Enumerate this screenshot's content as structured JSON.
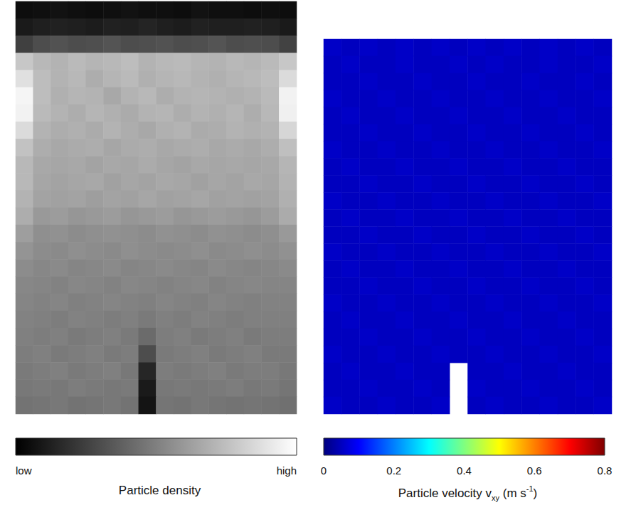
{
  "chart_data": [
    {
      "type": "heatmap",
      "tick_labels": false,
      "cells": [
        [
          0.05,
          0.06,
          0.07,
          0.06,
          0.05,
          0.06,
          0.07,
          0.06,
          0.06,
          0.05,
          0.07,
          0.06,
          0.06,
          0.05,
          0.06,
          0.05
        ],
        [
          0.1,
          0.12,
          0.13,
          0.12,
          0.11,
          0.13,
          0.12,
          0.14,
          0.12,
          0.11,
          0.13,
          0.12,
          0.12,
          0.13,
          0.12,
          0.1
        ],
        [
          0.25,
          0.3,
          0.32,
          0.3,
          0.31,
          0.33,
          0.3,
          0.31,
          0.32,
          0.3,
          0.31,
          0.33,
          0.3,
          0.31,
          0.3,
          0.26
        ],
        [
          0.78,
          0.72,
          0.7,
          0.73,
          0.71,
          0.72,
          0.74,
          0.7,
          0.72,
          0.73,
          0.71,
          0.7,
          0.72,
          0.71,
          0.73,
          0.78
        ],
        [
          0.88,
          0.74,
          0.7,
          0.72,
          0.68,
          0.71,
          0.73,
          0.69,
          0.71,
          0.72,
          0.7,
          0.69,
          0.71,
          0.72,
          0.74,
          0.86
        ],
        [
          0.96,
          0.74,
          0.69,
          0.71,
          0.7,
          0.66,
          0.7,
          0.72,
          0.68,
          0.7,
          0.71,
          0.7,
          0.69,
          0.7,
          0.73,
          0.95
        ],
        [
          0.95,
          0.73,
          0.7,
          0.68,
          0.71,
          0.69,
          0.67,
          0.7,
          0.71,
          0.68,
          0.7,
          0.69,
          0.71,
          0.68,
          0.72,
          0.94
        ],
        [
          0.86,
          0.7,
          0.68,
          0.69,
          0.67,
          0.7,
          0.68,
          0.66,
          0.69,
          0.7,
          0.67,
          0.68,
          0.7,
          0.69,
          0.7,
          0.84
        ],
        [
          0.76,
          0.68,
          0.66,
          0.67,
          0.68,
          0.65,
          0.67,
          0.68,
          0.66,
          0.67,
          0.68,
          0.66,
          0.67,
          0.66,
          0.68,
          0.75
        ],
        [
          0.72,
          0.66,
          0.65,
          0.66,
          0.64,
          0.66,
          0.65,
          0.67,
          0.65,
          0.64,
          0.66,
          0.65,
          0.66,
          0.65,
          0.66,
          0.71
        ],
        [
          0.72,
          0.65,
          0.64,
          0.65,
          0.66,
          0.63,
          0.65,
          0.64,
          0.66,
          0.65,
          0.63,
          0.65,
          0.64,
          0.66,
          0.65,
          0.7
        ],
        [
          0.7,
          0.64,
          0.63,
          0.64,
          0.62,
          0.64,
          0.63,
          0.65,
          0.63,
          0.64,
          0.65,
          0.63,
          0.64,
          0.63,
          0.64,
          0.69
        ],
        [
          0.68,
          0.6,
          0.61,
          0.59,
          0.6,
          0.61,
          0.59,
          0.6,
          0.61,
          0.59,
          0.6,
          0.61,
          0.6,
          0.59,
          0.61,
          0.67
        ],
        [
          0.62,
          0.56,
          0.57,
          0.55,
          0.56,
          0.57,
          0.56,
          0.55,
          0.57,
          0.56,
          0.55,
          0.57,
          0.56,
          0.55,
          0.56,
          0.6
        ],
        [
          0.58,
          0.55,
          0.54,
          0.56,
          0.55,
          0.54,
          0.56,
          0.55,
          0.54,
          0.55,
          0.56,
          0.54,
          0.55,
          0.56,
          0.55,
          0.57
        ],
        [
          0.55,
          0.53,
          0.54,
          0.52,
          0.53,
          0.54,
          0.52,
          0.53,
          0.54,
          0.53,
          0.52,
          0.54,
          0.53,
          0.52,
          0.53,
          0.54
        ],
        [
          0.53,
          0.52,
          0.51,
          0.53,
          0.52,
          0.51,
          0.53,
          0.52,
          0.51,
          0.52,
          0.53,
          0.51,
          0.52,
          0.53,
          0.52,
          0.52
        ],
        [
          0.52,
          0.51,
          0.52,
          0.5,
          0.51,
          0.52,
          0.51,
          0.5,
          0.52,
          0.51,
          0.5,
          0.52,
          0.51,
          0.5,
          0.51,
          0.51
        ],
        [
          0.51,
          0.5,
          0.49,
          0.51,
          0.5,
          0.49,
          0.5,
          0.48,
          0.5,
          0.49,
          0.51,
          0.5,
          0.49,
          0.5,
          0.5,
          0.5
        ],
        [
          0.5,
          0.49,
          0.5,
          0.48,
          0.49,
          0.5,
          0.48,
          0.42,
          0.49,
          0.5,
          0.48,
          0.49,
          0.5,
          0.48,
          0.49,
          0.49
        ],
        [
          0.49,
          0.5,
          0.48,
          0.49,
          0.5,
          0.48,
          0.49,
          0.3,
          0.48,
          0.49,
          0.5,
          0.48,
          0.49,
          0.5,
          0.48,
          0.48
        ],
        [
          0.48,
          0.49,
          0.5,
          0.48,
          0.49,
          0.5,
          0.47,
          0.15,
          0.49,
          0.48,
          0.49,
          0.5,
          0.48,
          0.49,
          0.49,
          0.47
        ],
        [
          0.47,
          0.48,
          0.47,
          0.49,
          0.48,
          0.47,
          0.48,
          0.1,
          0.47,
          0.48,
          0.47,
          0.48,
          0.49,
          0.47,
          0.48,
          0.46
        ],
        [
          0.45,
          0.46,
          0.47,
          0.45,
          0.46,
          0.47,
          0.45,
          0.08,
          0.46,
          0.45,
          0.47,
          0.46,
          0.45,
          0.46,
          0.45,
          0.44
        ]
      ],
      "colorbar": {
        "range": [
          0,
          1
        ],
        "labels": [
          {
            "value": 0,
            "label": "low"
          },
          {
            "value": 1,
            "label": "high"
          }
        ],
        "title": "Particle density"
      }
    },
    {
      "type": "heatmap",
      "tick_labels": false,
      "cells": [
        [
          0.09,
          0.08,
          0.09,
          0.08,
          0.09,
          0.08,
          0.09,
          0.08,
          0.09,
          0.08,
          0.09,
          0.08,
          0.09,
          0.08,
          0.09,
          0.08
        ],
        [
          0.08,
          0.09,
          0.08,
          0.08,
          0.09,
          0.08,
          0.08,
          0.09,
          0.08,
          0.09,
          0.08,
          0.08,
          0.09,
          0.08,
          0.08,
          0.09
        ],
        [
          0.08,
          0.08,
          0.09,
          0.08,
          0.08,
          0.09,
          0.08,
          0.08,
          0.09,
          0.08,
          0.08,
          0.09,
          0.08,
          0.08,
          0.09,
          0.08
        ],
        [
          0.09,
          0.08,
          0.08,
          0.09,
          0.08,
          0.08,
          0.09,
          0.08,
          0.08,
          0.09,
          0.08,
          0.08,
          0.09,
          0.08,
          0.08,
          0.09
        ],
        [
          0.08,
          0.09,
          0.08,
          0.08,
          0.09,
          0.08,
          0.08,
          0.09,
          0.08,
          0.08,
          0.09,
          0.08,
          0.08,
          0.09,
          0.08,
          0.08
        ],
        [
          0.08,
          0.08,
          0.09,
          0.08,
          0.08,
          0.09,
          0.08,
          0.08,
          0.09,
          0.08,
          0.08,
          0.09,
          0.08,
          0.08,
          0.09,
          0.08
        ],
        [
          0.09,
          0.08,
          0.08,
          0.09,
          0.08,
          0.08,
          0.09,
          0.08,
          0.08,
          0.09,
          0.08,
          0.08,
          0.09,
          0.08,
          0.08,
          0.09
        ],
        [
          0.08,
          0.09,
          0.08,
          0.08,
          0.09,
          0.08,
          0.08,
          0.09,
          0.08,
          0.08,
          0.09,
          0.08,
          0.08,
          0.09,
          0.08,
          0.08
        ],
        [
          0.08,
          0.08,
          0.09,
          0.08,
          0.08,
          0.09,
          0.08,
          0.08,
          0.09,
          0.08,
          0.08,
          0.09,
          0.08,
          0.08,
          0.09,
          0.08
        ],
        [
          0.09,
          0.08,
          0.08,
          0.09,
          0.08,
          0.08,
          0.09,
          0.08,
          0.08,
          0.09,
          0.08,
          0.08,
          0.09,
          0.08,
          0.08,
          0.09
        ],
        [
          0.08,
          0.09,
          0.08,
          0.08,
          0.09,
          0.08,
          0.08,
          0.09,
          0.08,
          0.08,
          0.09,
          0.08,
          0.08,
          0.09,
          0.08,
          0.08
        ],
        [
          0.08,
          0.08,
          0.09,
          0.08,
          0.08,
          0.09,
          0.08,
          0.08,
          0.09,
          0.08,
          0.08,
          0.09,
          0.08,
          0.08,
          0.09,
          0.08
        ],
        [
          0.09,
          0.08,
          0.08,
          0.09,
          0.08,
          0.08,
          0.09,
          0.08,
          0.08,
          0.09,
          0.08,
          0.08,
          0.09,
          0.08,
          0.08,
          0.09
        ],
        [
          0.08,
          0.09,
          0.08,
          0.08,
          0.09,
          0.08,
          0.08,
          0.09,
          0.08,
          0.08,
          0.09,
          0.08,
          0.08,
          0.09,
          0.08,
          0.08
        ],
        [
          0.08,
          0.08,
          0.09,
          0.08,
          0.08,
          0.09,
          0.08,
          0.08,
          0.09,
          0.08,
          0.08,
          0.09,
          0.08,
          0.08,
          0.09,
          0.08
        ],
        [
          0.09,
          0.08,
          0.08,
          0.09,
          0.08,
          0.08,
          0.09,
          0.08,
          0.08,
          0.09,
          0.08,
          0.08,
          0.09,
          0.08,
          0.08,
          0.09
        ],
        [
          0.08,
          0.09,
          0.08,
          0.08,
          0.09,
          0.08,
          0.08,
          0.09,
          0.08,
          0.08,
          0.09,
          0.08,
          0.08,
          0.09,
          0.08,
          0.08
        ],
        [
          0.08,
          0.08,
          0.09,
          0.08,
          0.08,
          0.09,
          0.08,
          0.08,
          0.09,
          0.08,
          0.08,
          0.09,
          0.08,
          0.08,
          0.09,
          0.08
        ],
        [
          0.09,
          0.08,
          0.08,
          0.09,
          0.08,
          0.08,
          0.09,
          0.08,
          0.08,
          0.09,
          0.08,
          0.08,
          0.09,
          0.08,
          0.08,
          0.09
        ],
        [
          0.08,
          0.09,
          0.08,
          0.08,
          0.09,
          0.08,
          0.08,
          null,
          0.08,
          0.08,
          0.09,
          0.08,
          0.08,
          0.09,
          0.08,
          0.08
        ],
        [
          0.08,
          0.08,
          0.09,
          0.08,
          0.08,
          0.09,
          0.08,
          null,
          0.09,
          0.08,
          0.08,
          0.09,
          0.08,
          0.08,
          0.09,
          0.08
        ],
        [
          0.09,
          0.08,
          0.08,
          0.09,
          0.08,
          0.08,
          0.09,
          null,
          0.08,
          0.09,
          0.08,
          0.08,
          0.09,
          0.08,
          0.08,
          0.09
        ]
      ],
      "colorbar": {
        "range": [
          0,
          0.8
        ],
        "ticks": [
          0,
          0.2,
          0.4,
          0.6,
          0.8
        ],
        "title": [
          {
            "text": "Particle velocity v"
          },
          {
            "text": "xy",
            "style": "sub"
          },
          {
            "text": " (m s"
          },
          {
            "text": "-1",
            "style": "sup"
          },
          {
            "text": ")"
          }
        ]
      }
    }
  ]
}
